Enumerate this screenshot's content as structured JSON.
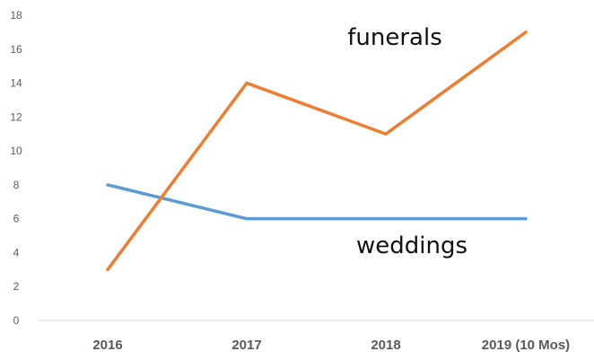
{
  "chart_data": {
    "type": "line",
    "title": "",
    "xlabel": "",
    "ylabel": "",
    "categories": [
      "2016",
      "2017",
      "2018",
      "2019 (10 Mos)"
    ],
    "ylim": [
      0,
      18
    ],
    "yticks": [
      0,
      2,
      4,
      6,
      8,
      10,
      12,
      14,
      16,
      18
    ],
    "grid": false,
    "series": [
      {
        "name": "funerals",
        "values": [
          3,
          14,
          11,
          17
        ],
        "color": "#ED7D31"
      },
      {
        "name": "weddings",
        "values": [
          8,
          6,
          6,
          6
        ],
        "color": "#5B9BD5"
      }
    ],
    "axis_color": "#D9D9D9"
  }
}
